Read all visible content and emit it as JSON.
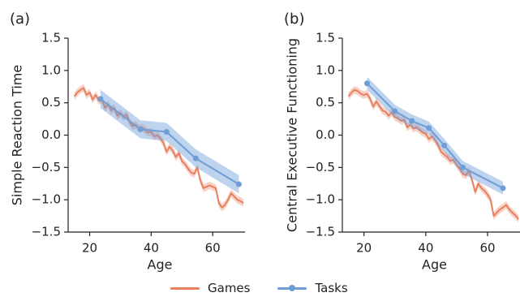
{
  "colors": {
    "games": "#E8805F",
    "tasks": "#6F9ED6"
  },
  "legend": {
    "games_label": "Games",
    "tasks_label": "Tasks"
  },
  "chart_data": [
    {
      "type": "line",
      "panel_label": "(a)",
      "xlabel": "Age",
      "ylabel": "Simple Reaction Time",
      "xlim": [
        13,
        70.5
      ],
      "ylim": [
        -1.5,
        1.5
      ],
      "xticks": [
        20,
        40,
        60
      ],
      "yticks": [
        -1.5,
        -1.0,
        -0.5,
        0.0,
        0.5,
        1.0,
        1.5
      ],
      "ytick_labels": [
        "−1.5",
        "−1.0",
        "−0.5",
        "0.0",
        "0.5",
        "1.0",
        "1.5"
      ],
      "grid": false,
      "series": [
        {
          "name": "Games",
          "x": [
            15,
            16,
            17,
            18,
            19,
            20,
            21,
            22,
            23,
            24,
            25,
            26,
            27,
            28,
            29,
            30,
            31,
            32,
            33,
            34,
            35,
            36,
            37,
            38,
            39,
            40,
            41,
            42,
            43,
            44,
            45,
            46,
            47,
            48,
            49,
            50,
            51,
            52,
            53,
            54,
            55,
            56,
            57,
            58,
            59,
            60,
            61,
            62,
            63,
            64,
            65,
            66,
            67,
            68,
            69,
            70
          ],
          "values": [
            0.6,
            0.66,
            0.7,
            0.73,
            0.62,
            0.66,
            0.55,
            0.62,
            0.53,
            0.55,
            0.42,
            0.48,
            0.38,
            0.42,
            0.3,
            0.34,
            0.28,
            0.32,
            0.2,
            0.14,
            0.16,
            0.1,
            0.12,
            0.08,
            0.04,
            0.05,
            -0.02,
            0.0,
            -0.05,
            -0.12,
            -0.26,
            -0.18,
            -0.24,
            -0.34,
            -0.28,
            -0.4,
            -0.45,
            -0.52,
            -0.58,
            -0.6,
            -0.5,
            -0.7,
            -0.82,
            -0.8,
            -0.78,
            -0.8,
            -0.82,
            -1.05,
            -1.12,
            -1.08,
            -1.0,
            -0.9,
            -0.95,
            -1.0,
            -1.02,
            -1.05
          ],
          "band": 0.06
        },
        {
          "name": "Tasks",
          "x": [
            23.5,
            36.5,
            45,
            54.5,
            68.5
          ],
          "values": [
            0.56,
            0.09,
            0.05,
            -0.36,
            -0.76
          ],
          "band": 0.14,
          "markers": true
        }
      ]
    },
    {
      "type": "line",
      "panel_label": "(b)",
      "xlabel": "Age",
      "ylabel": "Central Executive Functioning",
      "xlim": [
        13,
        70.5
      ],
      "ylim": [
        -1.5,
        1.5
      ],
      "xticks": [
        20,
        40,
        60
      ],
      "yticks": [
        -1.5,
        -1.0,
        -0.5,
        0.0,
        0.5,
        1.0,
        1.5
      ],
      "ytick_labels": [
        "−1.5",
        "−1.0",
        "−0.5",
        "0.0",
        "0.5",
        "1.0",
        "1.5"
      ],
      "grid": false,
      "series": [
        {
          "name": "Games",
          "x": [
            15,
            16,
            17,
            18,
            19,
            20,
            21,
            22,
            23,
            24,
            25,
            26,
            27,
            28,
            29,
            30,
            31,
            32,
            33,
            34,
            35,
            36,
            37,
            38,
            39,
            40,
            41,
            42,
            43,
            44,
            45,
            46,
            47,
            48,
            49,
            50,
            51,
            52,
            53,
            54,
            55,
            56,
            57,
            58,
            59,
            60,
            61,
            62,
            63,
            64,
            65,
            66,
            67,
            68,
            69,
            70
          ],
          "values": [
            0.6,
            0.66,
            0.7,
            0.68,
            0.64,
            0.62,
            0.64,
            0.56,
            0.44,
            0.52,
            0.45,
            0.38,
            0.36,
            0.3,
            0.35,
            0.28,
            0.26,
            0.22,
            0.24,
            0.12,
            0.16,
            0.1,
            0.12,
            0.08,
            0.04,
            0.02,
            -0.06,
            -0.02,
            -0.08,
            -0.16,
            -0.26,
            -0.3,
            -0.34,
            -0.4,
            -0.38,
            -0.46,
            -0.52,
            -0.6,
            -0.62,
            -0.55,
            -0.7,
            -0.88,
            -0.75,
            -0.82,
            -0.86,
            -0.92,
            -1.0,
            -1.25,
            -1.2,
            -1.15,
            -1.12,
            -1.08,
            -1.15,
            -1.2,
            -1.24,
            -1.3
          ],
          "band": 0.06
        },
        {
          "name": "Tasks",
          "x": [
            21,
            30,
            35.5,
            41,
            46,
            52,
            65
          ],
          "values": [
            0.8,
            0.37,
            0.22,
            0.11,
            -0.16,
            -0.5,
            -0.82
          ],
          "band": 0.1,
          "markers": true
        }
      ]
    }
  ]
}
